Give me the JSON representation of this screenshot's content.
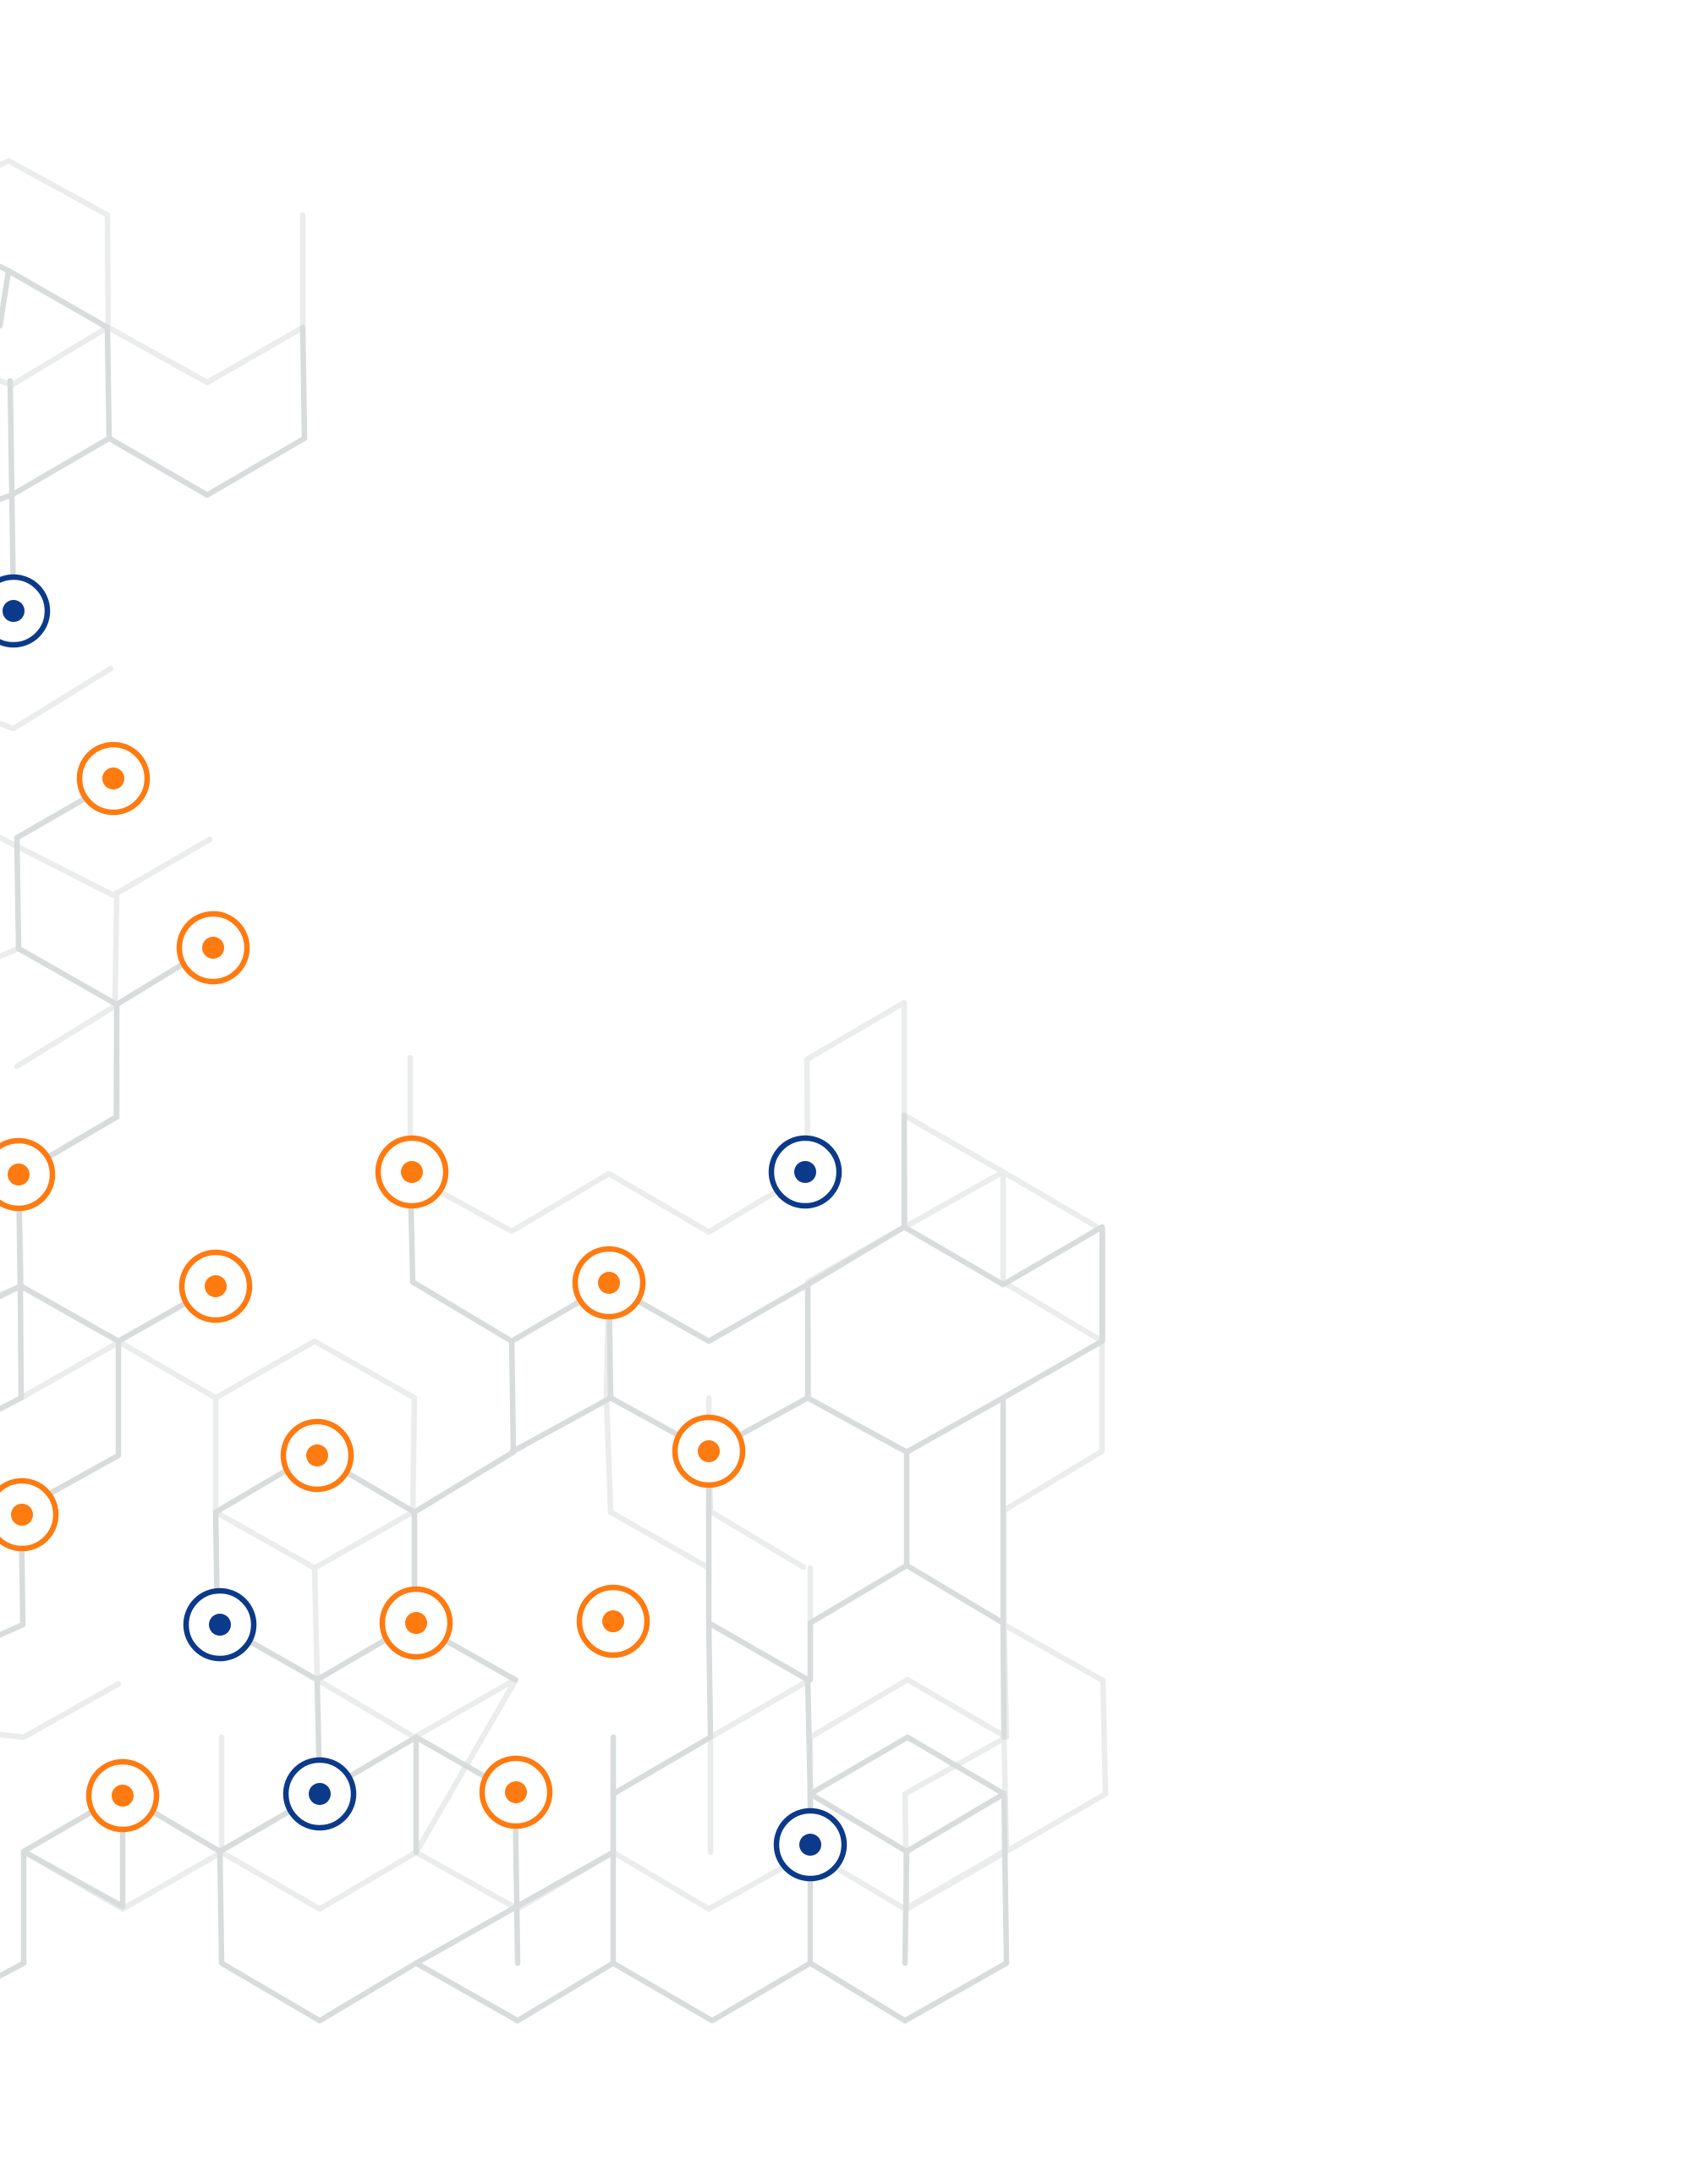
{
  "canvas": {
    "background": "#ffffff"
  },
  "palette": {
    "grid_dark": "#d9dcdc",
    "grid_light": "#ebecec",
    "node_orange": "#ff7a0f",
    "node_blue": "#0b3a8a"
  },
  "decor": {
    "pattern": "hexagonal-network",
    "node_types": [
      "orange-target",
      "blue-target"
    ]
  }
}
